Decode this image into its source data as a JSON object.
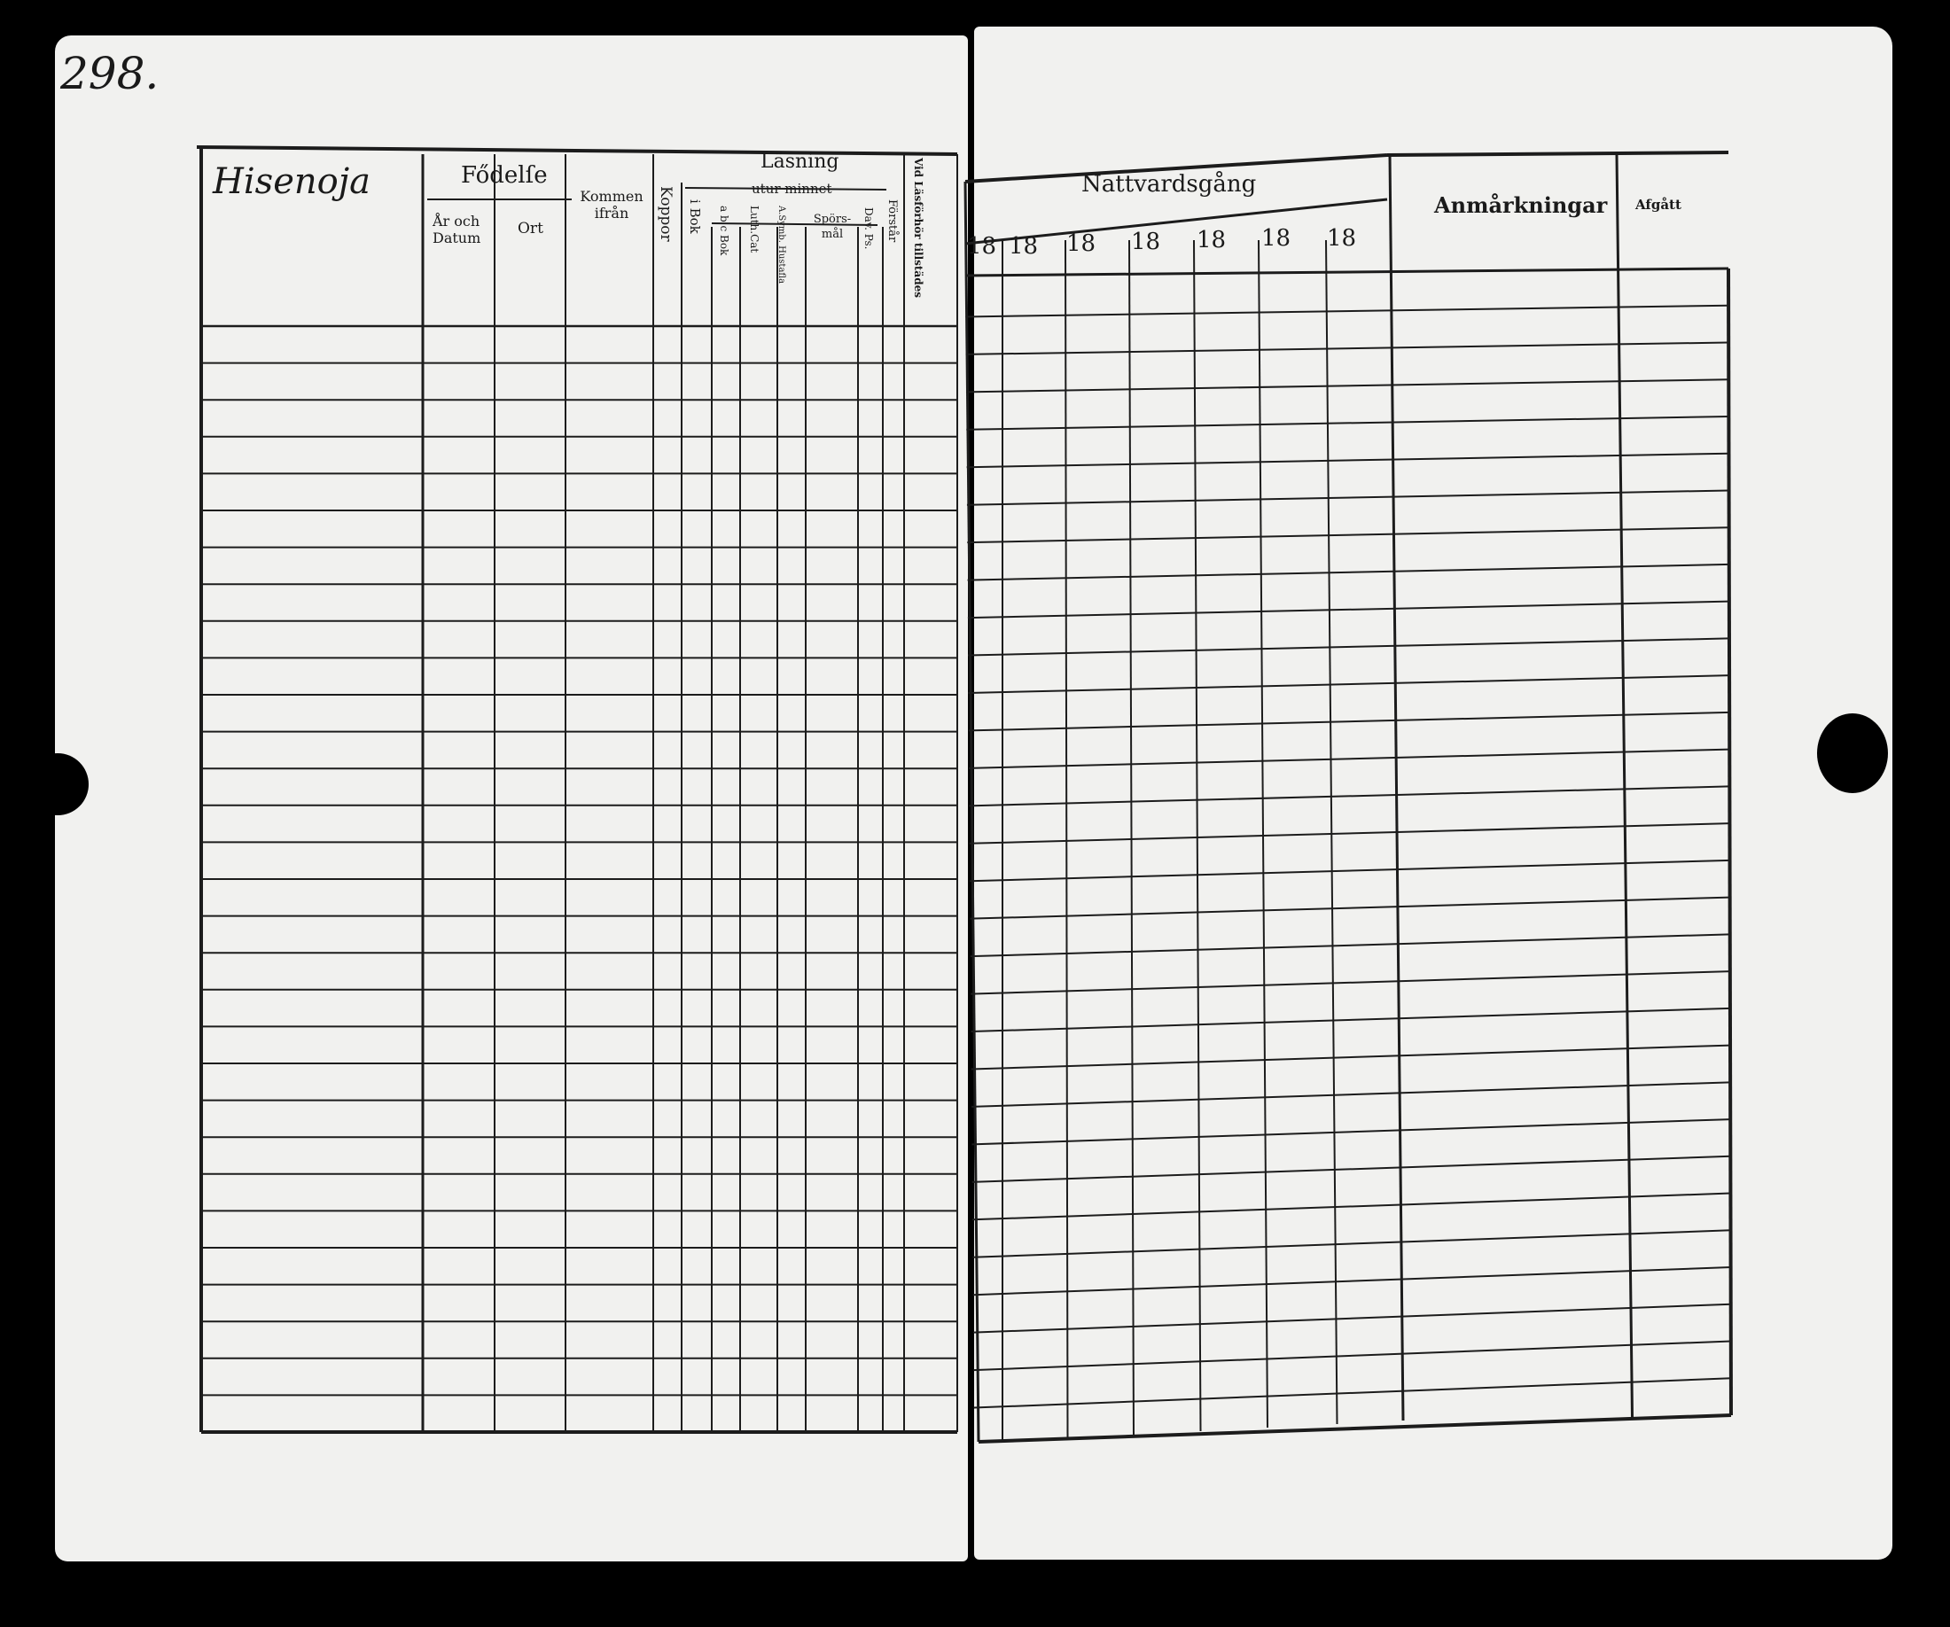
{
  "page_number": "298.",
  "left_page": {
    "village_name": "Hisenoja",
    "headers": {
      "fodelse": "Fődelſe",
      "ar_och_datum": "År och Datum",
      "ort": "Ort",
      "kommen_ifran": "Kommen ifrån",
      "koppor": "Koppor",
      "lasning": "Läsning",
      "i_bok": "i Bok",
      "utur_minnet": "utur minnet",
      "abo_bok": "a b c Bok",
      "luth_cat": "Luth.Cat",
      "a_symb_hustafla": "A.Symb. Hustafla",
      "sporsmal": "Spörs-mål",
      "dav_ps": "Dav. Ps.",
      "forstar": "Förstår",
      "vid_lasforhor": "Vid Läsförhör tillstädes"
    }
  },
  "right_page": {
    "headers": {
      "nattvardsgang": "Nattvardsgång",
      "years": [
        "18",
        "18",
        "18",
        "18",
        "18",
        "18",
        "18"
      ],
      "anmarkningar": "Anmårkningar",
      "afgatt": "Afgått"
    }
  }
}
